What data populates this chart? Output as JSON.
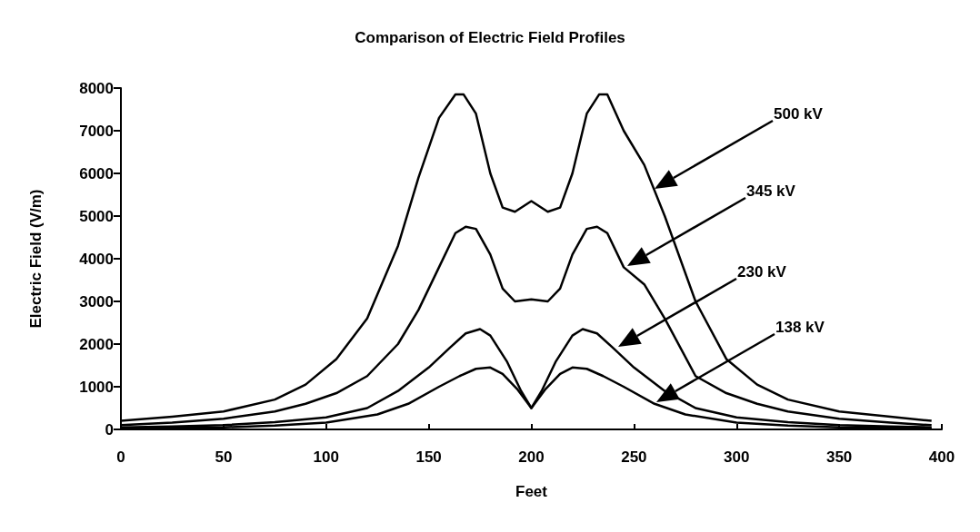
{
  "chart_data": {
    "type": "line",
    "title": "Comparison of Electric Field Profiles",
    "xlabel": "Feet",
    "ylabel": "Electric Field (V/m)",
    "xlim": [
      0,
      400
    ],
    "xticks": [
      0,
      50,
      100,
      150,
      200,
      250,
      300,
      350,
      400
    ],
    "ylim": [
      0,
      8000
    ],
    "yticks": [
      0,
      1000,
      2000,
      3000,
      4000,
      5000,
      6000,
      7000,
      8000
    ],
    "grid": false,
    "marker": "none",
    "line_style": "solid",
    "series": [
      {
        "color": "#000000",
        "x": [
          0,
          25,
          50,
          75,
          90,
          105,
          120,
          135,
          145,
          155,
          163,
          167,
          173,
          180,
          186,
          192,
          200,
          208,
          214,
          220,
          227,
          233,
          237,
          245,
          255,
          265,
          280,
          295,
          310,
          325,
          350,
          375,
          395
        ],
        "values": [
          200,
          300,
          420,
          700,
          1050,
          1650,
          2600,
          4300,
          5900,
          7300,
          7850,
          7850,
          7400,
          6000,
          5200,
          5100,
          5350,
          5100,
          5200,
          6000,
          7400,
          7850,
          7850,
          7000,
          6200,
          5000,
          3000,
          1650,
          1050,
          700,
          420,
          300,
          200
        ]
      },
      {
        "color": "#000000",
        "x": [
          0,
          25,
          50,
          75,
          90,
          105,
          120,
          135,
          145,
          155,
          163,
          168,
          173,
          180,
          186,
          192,
          200,
          208,
          214,
          220,
          227,
          232,
          237,
          245,
          255,
          265,
          280,
          295,
          310,
          325,
          350,
          375,
          395
        ],
        "values": [
          100,
          160,
          250,
          420,
          600,
          850,
          1250,
          2000,
          2800,
          3800,
          4600,
          4750,
          4700,
          4100,
          3300,
          3000,
          3050,
          3000,
          3300,
          4100,
          4700,
          4750,
          4600,
          3800,
          3400,
          2600,
          1250,
          850,
          600,
          420,
          250,
          160,
          100
        ]
      },
      {
        "color": "#000000",
        "x": [
          0,
          25,
          50,
          75,
          100,
          120,
          135,
          150,
          160,
          168,
          175,
          180,
          188,
          195,
          200,
          205,
          212,
          220,
          225,
          232,
          240,
          250,
          265,
          280,
          300,
          325,
          350,
          375,
          395
        ],
        "values": [
          50,
          70,
          100,
          170,
          280,
          500,
          900,
          1450,
          1900,
          2250,
          2350,
          2200,
          1600,
          900,
          500,
          900,
          1600,
          2200,
          2350,
          2250,
          1900,
          1450,
          900,
          500,
          280,
          170,
          100,
          70,
          50
        ]
      },
      {
        "color": "#000000",
        "x": [
          0,
          25,
          50,
          75,
          100,
          125,
          140,
          155,
          165,
          173,
          180,
          186,
          193,
          200,
          207,
          214,
          220,
          227,
          235,
          245,
          260,
          275,
          300,
          325,
          350,
          375,
          395
        ],
        "values": [
          20,
          40,
          50,
          90,
          160,
          350,
          600,
          1000,
          1250,
          1420,
          1450,
          1300,
          950,
          500,
          950,
          1300,
          1450,
          1420,
          1250,
          1000,
          600,
          350,
          160,
          90,
          50,
          40,
          20
        ]
      }
    ],
    "annotations": [
      "500 kV",
      "345 kV",
      "230 kV",
      "138 kV"
    ]
  }
}
